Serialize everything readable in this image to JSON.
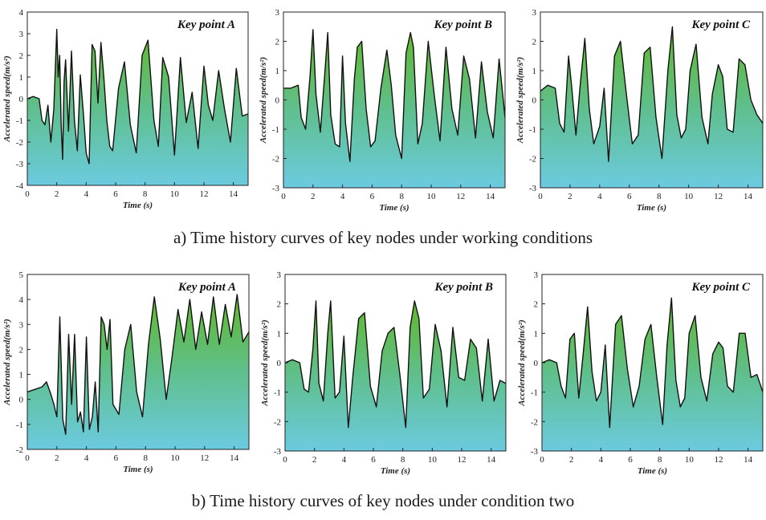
{
  "captions": {
    "a": "a) Time history curves of key nodes under working conditions",
    "b": "b) Time history curves of key nodes under condition two"
  },
  "colors": {
    "fill_top": "#62b82a",
    "fill_bottom": "#6bcbe0",
    "line": "#111111",
    "frame": "#222222"
  },
  "chart_data": [
    {
      "type": "area",
      "title": "Key point A",
      "xlabel": "Time (s)",
      "ylabel": "Accelerated speed(m/s²)",
      "xlim": [
        0,
        15
      ],
      "ylim": [
        -4,
        4
      ],
      "xticks": [
        0,
        2,
        4,
        6,
        8,
        10,
        12,
        14
      ],
      "yticks": [
        -4,
        -3,
        -2,
        -1,
        0,
        1,
        2,
        3,
        4
      ],
      "x": [
        0,
        0.4,
        0.8,
        1.0,
        1.2,
        1.4,
        1.6,
        1.8,
        2.0,
        2.1,
        2.2,
        2.3,
        2.4,
        2.5,
        2.6,
        2.8,
        3.0,
        3.2,
        3.4,
        3.6,
        3.8,
        4.0,
        4.2,
        4.4,
        4.6,
        4.8,
        5.0,
        5.2,
        5.4,
        5.6,
        5.8,
        6.2,
        6.6,
        7.0,
        7.4,
        7.8,
        8.2,
        8.6,
        8.9,
        9.2,
        9.6,
        10.0,
        10.4,
        10.8,
        11.2,
        11.6,
        12.0,
        12.3,
        12.6,
        13.0,
        13.4,
        13.8,
        14.2,
        14.6,
        15.0
      ],
      "y": [
        0,
        0.1,
        0.0,
        -1.0,
        -1.2,
        -0.3,
        -2.0,
        -0.5,
        3.2,
        1.0,
        2.0,
        -1.2,
        -2.8,
        0.8,
        1.8,
        -1.5,
        2.2,
        -1.0,
        -2.4,
        1.1,
        -0.6,
        -2.5,
        -3.0,
        2.5,
        2.2,
        -0.2,
        2.6,
        1.0,
        -1.0,
        -2.2,
        -2.4,
        0.5,
        1.7,
        -1.2,
        -2.5,
        2.0,
        2.7,
        -1.0,
        -2.2,
        1.9,
        1.0,
        -2.6,
        1.9,
        -1.1,
        0.3,
        -2.3,
        1.5,
        -0.3,
        -1.0,
        1.3,
        -0.5,
        -2.0,
        1.4,
        -0.8,
        -0.7
      ]
    },
    {
      "type": "area",
      "title": "Key point B",
      "xlabel": "Time (s)",
      "ylabel": "Accelerated speed(m/s²)",
      "xlim": [
        0,
        15
      ],
      "ylim": [
        -3,
        3
      ],
      "xticks": [
        0,
        2,
        4,
        6,
        8,
        10,
        12,
        14
      ],
      "yticks": [
        -3,
        -2,
        -1,
        0,
        1,
        2,
        3
      ],
      "x": [
        0,
        0.5,
        1.0,
        1.2,
        1.5,
        1.8,
        2.0,
        2.2,
        2.5,
        2.8,
        3.0,
        3.2,
        3.5,
        3.8,
        4.0,
        4.2,
        4.5,
        4.8,
        5.0,
        5.3,
        5.6,
        5.9,
        6.2,
        6.6,
        7.0,
        7.3,
        7.6,
        8.0,
        8.3,
        8.6,
        8.8,
        9.1,
        9.4,
        9.8,
        10.2,
        10.6,
        11.0,
        11.4,
        11.8,
        12.2,
        12.6,
        13.0,
        13.4,
        13.8,
        14.2,
        14.6,
        15.0
      ],
      "y": [
        0.4,
        0.4,
        0.5,
        -0.6,
        -1.0,
        0.8,
        2.4,
        0.2,
        -1.1,
        0.9,
        2.3,
        -0.5,
        -1.5,
        -1.6,
        1.5,
        -0.8,
        -2.1,
        0.7,
        1.8,
        2.0,
        -0.3,
        -1.6,
        -1.4,
        0.4,
        1.7,
        0.5,
        -1.2,
        -2.0,
        1.6,
        2.3,
        1.8,
        -1.5,
        -0.8,
        2.0,
        0.2,
        -1.4,
        1.8,
        -0.3,
        -1.2,
        1.5,
        0.7,
        -1.3,
        1.3,
        -0.4,
        -1.3,
        1.4,
        -0.6
      ]
    },
    {
      "type": "area",
      "title": "Key point C",
      "xlabel": "Time (s)",
      "ylabel": "Accelerated speed(m/s²)",
      "xlim": [
        0,
        15
      ],
      "ylim": [
        -3,
        3
      ],
      "xticks": [
        0,
        2,
        4,
        6,
        8,
        10,
        12,
        14
      ],
      "yticks": [
        -3,
        -2,
        -1,
        0,
        1,
        2,
        3
      ],
      "x": [
        0,
        0.5,
        1.0,
        1.3,
        1.6,
        1.9,
        2.1,
        2.4,
        2.7,
        3.0,
        3.3,
        3.6,
        4.0,
        4.3,
        4.6,
        5.0,
        5.4,
        5.8,
        6.2,
        6.6,
        7.0,
        7.4,
        7.8,
        8.2,
        8.6,
        8.9,
        9.2,
        9.5,
        9.8,
        10.1,
        10.5,
        10.9,
        11.3,
        11.6,
        12.0,
        12.3,
        12.6,
        13.0,
        13.4,
        13.8,
        14.2,
        14.6,
        15.0
      ],
      "y": [
        0.3,
        0.5,
        0.4,
        -0.8,
        -1.1,
        1.5,
        0.5,
        -1.2,
        0.6,
        2.1,
        -0.3,
        -1.5,
        -0.9,
        0.4,
        -2.1,
        1.5,
        2.0,
        0.2,
        -1.5,
        -1.2,
        1.6,
        1.8,
        -0.6,
        -2.0,
        1.0,
        2.5,
        -0.5,
        -1.3,
        -1.0,
        1.0,
        1.9,
        -0.6,
        -1.5,
        0.2,
        1.2,
        0.8,
        -1.0,
        -1.1,
        1.4,
        1.2,
        0.0,
        -0.5,
        -0.8
      ]
    },
    {
      "type": "area",
      "title": "Key point A",
      "xlabel": "Time (s)",
      "ylabel": "Accelerated speed(m/s²)",
      "xlim": [
        0,
        15
      ],
      "ylim": [
        -2,
        5
      ],
      "xticks": [
        0,
        2,
        4,
        6,
        8,
        10,
        12,
        14
      ],
      "yticks": [
        -2,
        -1,
        0,
        1,
        2,
        3,
        4,
        5
      ],
      "x": [
        0,
        0.5,
        1.0,
        1.3,
        1.6,
        1.8,
        2.0,
        2.2,
        2.4,
        2.6,
        2.8,
        3.0,
        3.2,
        3.4,
        3.6,
        3.8,
        4.0,
        4.2,
        4.4,
        4.6,
        4.8,
        5.0,
        5.2,
        5.4,
        5.6,
        5.8,
        6.2,
        6.6,
        7.0,
        7.4,
        7.8,
        8.2,
        8.6,
        9.0,
        9.4,
        9.8,
        10.2,
        10.6,
        11.0,
        11.4,
        11.8,
        12.2,
        12.6,
        13.0,
        13.4,
        13.8,
        14.2,
        14.6,
        15.0
      ],
      "y": [
        0.3,
        0.4,
        0.5,
        0.7,
        0.2,
        -0.2,
        -0.7,
        3.3,
        -0.8,
        -1.4,
        2.6,
        -0.2,
        2.6,
        -0.9,
        -0.5,
        -1.3,
        2.5,
        -1.2,
        -0.7,
        0.7,
        -1.3,
        3.3,
        3.0,
        2.0,
        3.2,
        -0.2,
        -0.6,
        2.0,
        3.0,
        0.3,
        -0.7,
        2.2,
        4.1,
        2.4,
        0.0,
        1.7,
        3.6,
        2.3,
        4.0,
        2.0,
        3.5,
        2.2,
        4.1,
        2.2,
        3.8,
        2.5,
        4.2,
        2.3,
        2.7
      ]
    },
    {
      "type": "area",
      "title": "Key point B",
      "xlabel": "Time (s)",
      "ylabel": "Accelerated speed(m/s²)",
      "xlim": [
        0,
        15
      ],
      "ylim": [
        -3,
        3
      ],
      "xticks": [
        0,
        2,
        4,
        6,
        8,
        10,
        12,
        14
      ],
      "yticks": [
        -3,
        -2,
        -1,
        0,
        1,
        2,
        3
      ],
      "x": [
        0,
        0.5,
        1.0,
        1.3,
        1.6,
        1.9,
        2.1,
        2.3,
        2.6,
        2.9,
        3.1,
        3.4,
        3.7,
        4.0,
        4.3,
        4.6,
        5.0,
        5.4,
        5.8,
        6.2,
        6.6,
        7.0,
        7.4,
        7.8,
        8.2,
        8.5,
        8.8,
        9.1,
        9.4,
        9.8,
        10.2,
        10.6,
        11.0,
        11.4,
        11.8,
        12.2,
        12.6,
        13.0,
        13.4,
        13.8,
        14.2,
        14.6,
        15.0
      ],
      "y": [
        0.0,
        0.1,
        0.0,
        -0.9,
        -1.0,
        0.5,
        2.1,
        -0.7,
        -1.3,
        1.0,
        2.1,
        -1.2,
        -1.0,
        0.9,
        -2.2,
        -0.5,
        1.5,
        1.7,
        -0.8,
        -1.5,
        0.4,
        1.0,
        1.2,
        -0.4,
        -2.2,
        1.2,
        2.1,
        1.5,
        -1.2,
        -0.9,
        1.3,
        0.4,
        -1.5,
        1.2,
        -0.5,
        -0.6,
        0.8,
        0.5,
        -1.3,
        0.8,
        -1.3,
        -0.6,
        -0.7
      ]
    },
    {
      "type": "area",
      "title": "Key point C",
      "xlabel": "Time (s)",
      "ylabel": "Accelerated speed(m/s²)",
      "xlim": [
        0,
        15
      ],
      "ylim": [
        -3,
        3
      ],
      "xticks": [
        0,
        2,
        4,
        6,
        8,
        10,
        12,
        14
      ],
      "yticks": [
        -3,
        -2,
        -1,
        0,
        1,
        2,
        3
      ],
      "x": [
        0,
        0.5,
        1.0,
        1.3,
        1.6,
        1.9,
        2.2,
        2.5,
        2.8,
        3.1,
        3.4,
        3.7,
        4.0,
        4.3,
        4.6,
        5.0,
        5.4,
        5.8,
        6.2,
        6.6,
        7.0,
        7.4,
        7.8,
        8.2,
        8.5,
        8.8,
        9.1,
        9.4,
        9.7,
        10.0,
        10.4,
        10.8,
        11.2,
        11.6,
        12.0,
        12.3,
        12.6,
        13.0,
        13.4,
        13.8,
        14.2,
        14.6,
        15.0
      ],
      "y": [
        0.0,
        0.1,
        0.0,
        -0.8,
        -1.2,
        0.8,
        1.0,
        -1.2,
        0.3,
        1.9,
        -0.3,
        -1.3,
        -1.0,
        0.6,
        -2.2,
        1.3,
        1.6,
        -0.2,
        -1.5,
        -0.8,
        0.8,
        1.3,
        -0.5,
        -2.1,
        0.6,
        2.2,
        -0.6,
        -1.5,
        -1.2,
        1.0,
        1.6,
        -0.5,
        -1.3,
        0.3,
        0.7,
        0.5,
        -0.8,
        -1.0,
        1.0,
        1.0,
        -0.5,
        -0.4,
        -1.0
      ]
    }
  ]
}
